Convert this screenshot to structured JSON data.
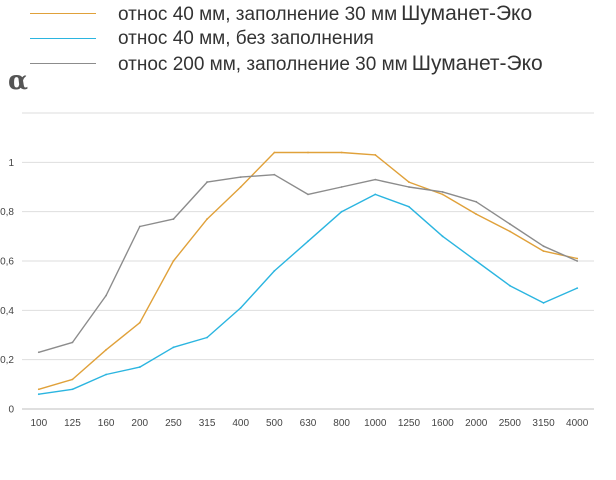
{
  "legend": [
    {
      "text": "относ 40 мм, заполнение 30 мм",
      "brand": "Шуманет-Эко",
      "color": "#e0a13a"
    },
    {
      "text": "относ 40 мм, без заполнения",
      "brand": "",
      "color": "#2bb5e0"
    },
    {
      "text": "относ 200 мм, заполнение 30 мм",
      "brand": "Шуманет-Эко",
      "color": "#8c8c8c"
    }
  ],
  "chart_data": {
    "type": "line",
    "ylabel": "α",
    "categories": [
      "100",
      "125",
      "160",
      "200",
      "250",
      "315",
      "400",
      "500",
      "630",
      "800",
      "1000",
      "1250",
      "1600",
      "2000",
      "2500",
      "3150",
      "4000"
    ],
    "ylim": [
      0,
      1.2
    ],
    "y_ticks": [
      "0",
      "0,2",
      "0,4",
      "0,6",
      "0,8",
      "1"
    ],
    "y_tick_values": [
      0,
      0.2,
      0.4,
      0.6,
      0.8,
      1.0
    ],
    "grid": true,
    "legend_position": "top",
    "series": [
      {
        "name": "относ 40 мм, заполнение 30 мм Шуманет-Эко",
        "color": "#e0a13a",
        "values": [
          0.08,
          0.12,
          0.24,
          0.35,
          0.6,
          0.77,
          0.9,
          1.04,
          1.04,
          1.04,
          1.03,
          0.92,
          0.87,
          0.79,
          0.72,
          0.64,
          0.61
        ]
      },
      {
        "name": "относ 40 мм, без заполнения",
        "color": "#2bb5e0",
        "values": [
          0.06,
          0.08,
          0.14,
          0.17,
          0.25,
          0.29,
          0.41,
          0.56,
          0.68,
          0.8,
          0.87,
          0.82,
          0.7,
          0.6,
          0.5,
          0.43,
          0.49
        ]
      },
      {
        "name": "относ 200 мм, заполнение 30 мм Шуманет-Эко",
        "color": "#8c8c8c",
        "values": [
          0.23,
          0.27,
          0.46,
          0.74,
          0.77,
          0.92,
          0.94,
          0.95,
          0.87,
          0.9,
          0.93,
          0.9,
          0.88,
          0.84,
          0.75,
          0.66,
          0.6
        ]
      }
    ]
  }
}
